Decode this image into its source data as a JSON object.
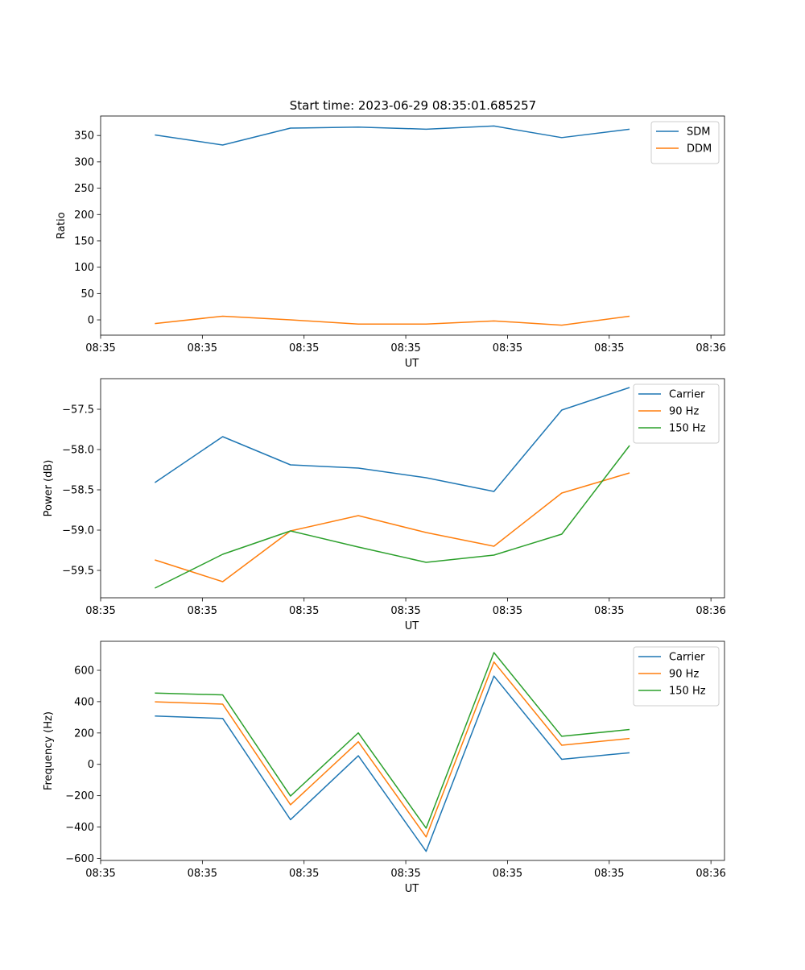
{
  "figure_title": "Start time: 2023-06-29 08:35:01.685257",
  "chart_data": [
    {
      "type": "line",
      "title": "Start time: 2023-06-29 08:35:01.685257",
      "xlabel": "UT",
      "ylabel": "Ratio",
      "x": [
        1,
        2,
        3,
        4,
        5,
        6,
        7,
        8
      ],
      "xlim": [
        0.2,
        9.4
      ],
      "xticks": [
        0.2,
        1.7,
        3.2,
        4.7,
        6.2,
        7.7,
        9.2
      ],
      "xtick_labels": [
        "08:35",
        "08:35",
        "08:35",
        "08:35",
        "08:35",
        "08:35",
        "08:36"
      ],
      "ylim": [
        -29,
        387
      ],
      "yticks": [
        0,
        50,
        100,
        150,
        200,
        250,
        300,
        350
      ],
      "ytick_labels": [
        "0",
        "50",
        "100",
        "150",
        "200",
        "250",
        "300",
        "350"
      ],
      "grid": false,
      "legend": "upper right",
      "series": [
        {
          "name": "SDM",
          "color": "#1f77b4",
          "values": [
            351,
            332,
            364,
            366,
            362,
            368,
            346,
            362
          ]
        },
        {
          "name": "DDM",
          "color": "#ff7f0e",
          "values": [
            -7,
            7,
            0,
            -8,
            -8,
            -2,
            -10,
            7
          ]
        }
      ]
    },
    {
      "type": "line",
      "title": "",
      "xlabel": "UT",
      "ylabel": "Power (dB)",
      "x": [
        1,
        2,
        3,
        4,
        5,
        6,
        7,
        8
      ],
      "xlim": [
        0.2,
        9.4
      ],
      "xticks": [
        0.2,
        1.7,
        3.2,
        4.7,
        6.2,
        7.7,
        9.2
      ],
      "xtick_labels": [
        "08:35",
        "08:35",
        "08:35",
        "08:35",
        "08:35",
        "08:35",
        "08:36"
      ],
      "ylim": [
        -59.84,
        -57.12
      ],
      "yticks": [
        -59.5,
        -59.0,
        -58.5,
        -58.0,
        -57.5
      ],
      "ytick_labels": [
        "−59.5",
        "−59.0",
        "−58.5",
        "−58.0",
        "−57.5"
      ],
      "grid": false,
      "legend": "upper right",
      "series": [
        {
          "name": "Carrier",
          "color": "#1f77b4",
          "values": [
            -58.41,
            -57.84,
            -58.19,
            -58.23,
            -58.35,
            -58.52,
            -57.51,
            -57.23
          ]
        },
        {
          "name": "90 Hz",
          "color": "#ff7f0e",
          "values": [
            -59.37,
            -59.64,
            -59.01,
            -58.82,
            -59.03,
            -59.2,
            -58.54,
            -58.29
          ]
        },
        {
          "name": "150 Hz",
          "color": "#2ca02c",
          "values": [
            -59.72,
            -59.3,
            -59.01,
            -59.21,
            -59.4,
            -59.31,
            -59.05,
            -57.95
          ]
        }
      ]
    },
    {
      "type": "line",
      "title": "",
      "xlabel": "UT",
      "ylabel": "Frequency (Hz)",
      "x": [
        1,
        2,
        3,
        4,
        5,
        6,
        7,
        8
      ],
      "xlim": [
        0.2,
        9.4
      ],
      "xticks": [
        0.2,
        1.7,
        3.2,
        4.7,
        6.2,
        7.7,
        9.2
      ],
      "xtick_labels": [
        "08:35",
        "08:35",
        "08:35",
        "08:35",
        "08:35",
        "08:35",
        "08:36"
      ],
      "ylim": [
        -613,
        785
      ],
      "yticks": [
        -600,
        -400,
        -200,
        0,
        200,
        400,
        600
      ],
      "ytick_labels": [
        "−600",
        "−400",
        "−200",
        "0",
        "200",
        "400",
        "600"
      ],
      "grid": false,
      "legend": "upper right",
      "series": [
        {
          "name": "Carrier",
          "color": "#1f77b4",
          "values": [
            308,
            293,
            -353,
            55,
            -555,
            563,
            32,
            74
          ]
        },
        {
          "name": "90 Hz",
          "color": "#ff7f0e",
          "values": [
            399,
            384,
            -258,
            144,
            -463,
            653,
            122,
            165
          ]
        },
        {
          "name": "150 Hz",
          "color": "#2ca02c",
          "values": [
            455,
            443,
            -202,
            201,
            -407,
            713,
            179,
            222
          ]
        }
      ]
    }
  ]
}
